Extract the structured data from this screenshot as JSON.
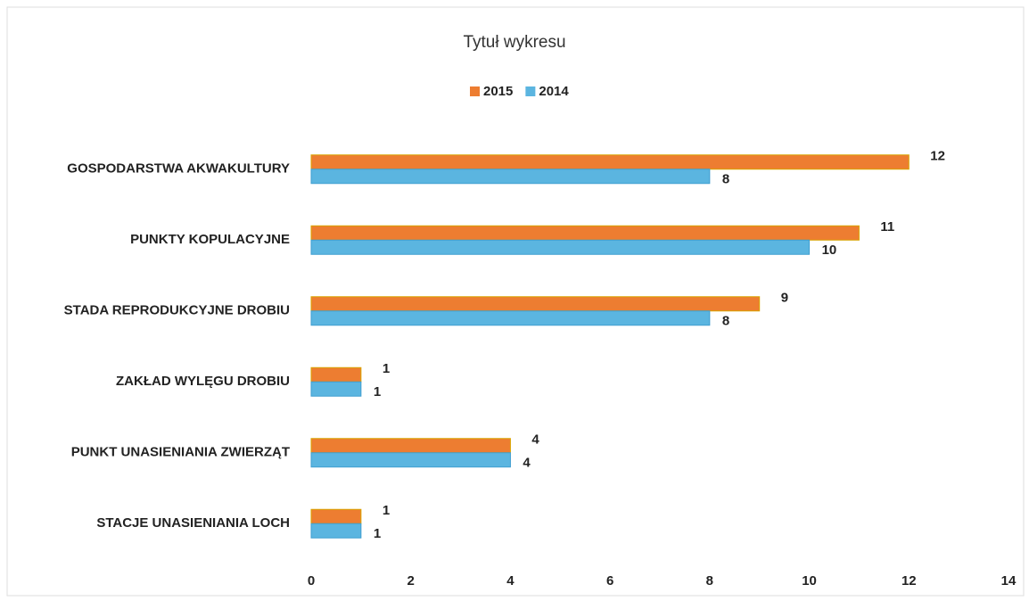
{
  "chart_data": {
    "type": "barh",
    "title": "Tytuł wykresu",
    "categories": [
      "GOSPODARSTWA AKWAKULTURY",
      "PUNKTY KOPULACYJNE",
      "STADA REPRODUKCYJNE DROBIU",
      "ZAKŁAD WYLĘGU DROBIU",
      "PUNKT UNASIENIANIA ZWIERZĄT",
      "STACJE UNASIENIANIA LOCH"
    ],
    "series": [
      {
        "name": "2015",
        "color": "#ed7d31",
        "values": [
          12,
          11,
          9,
          1,
          4,
          1
        ]
      },
      {
        "name": "2014",
        "color": "#5bb5e0",
        "values": [
          8,
          10,
          8,
          1,
          4,
          1
        ]
      }
    ],
    "xlim": [
      0,
      14
    ],
    "xticks": [
      0,
      2,
      4,
      6,
      8,
      10,
      12,
      14
    ],
    "grid": false,
    "legend": "top"
  }
}
